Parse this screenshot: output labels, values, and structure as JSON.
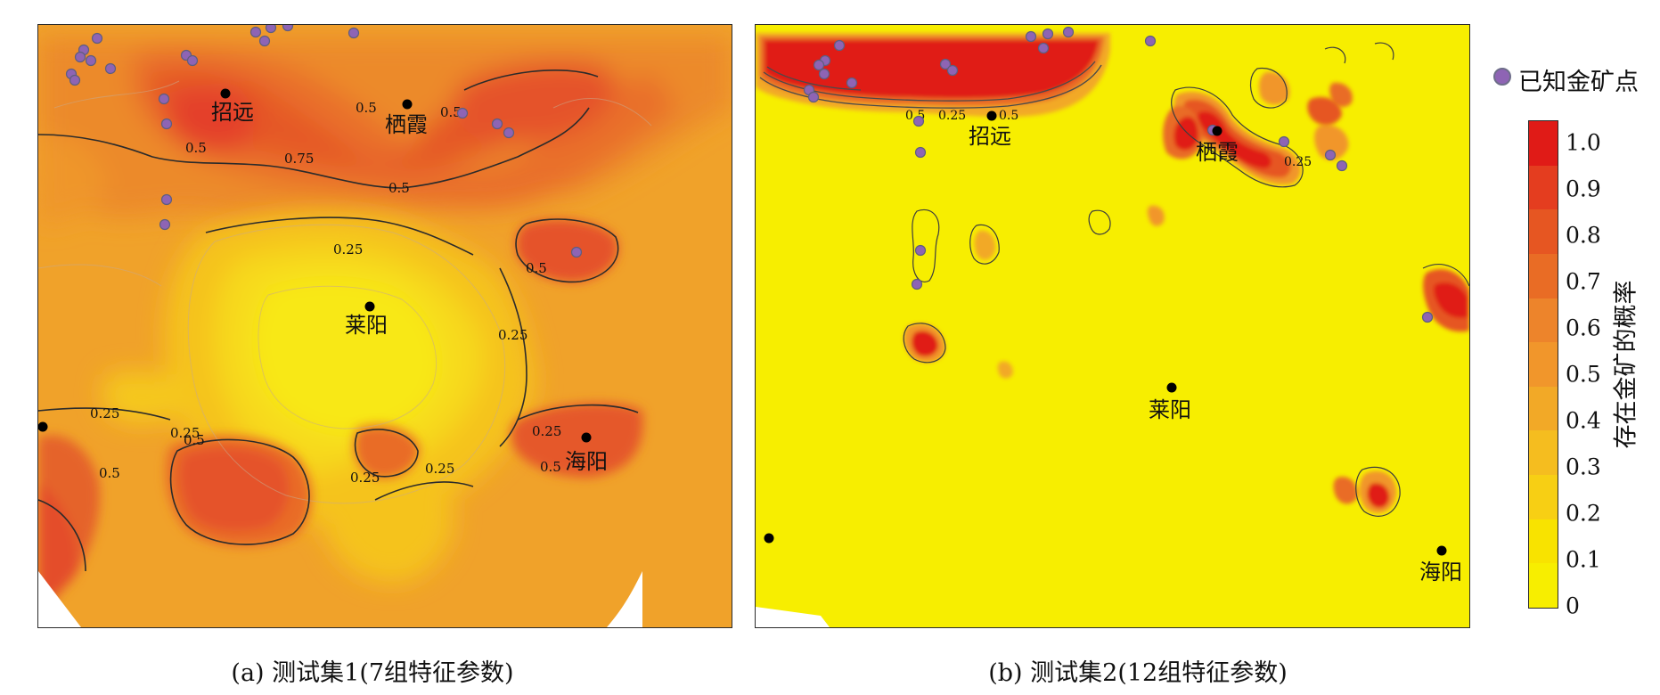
{
  "legend": {
    "marker_label": "已知金矿点",
    "marker_color": "#8e64b4",
    "colorbar_title": "存在金矿的概率",
    "ticks": [
      "0",
      "0.1",
      "0.2",
      "0.3",
      "0.4",
      "0.5",
      "0.6",
      "0.7",
      "0.8",
      "0.9",
      "1.0"
    ],
    "bands": [
      "#f7ee00",
      "#f8e300",
      "#f7cf14",
      "#f5bd1f",
      "#f2a927",
      "#f1962b",
      "#ed842b",
      "#e96c25",
      "#e65622",
      "#e43d1f",
      "#e01b17"
    ]
  },
  "panel_a": {
    "caption": "(a) 测试集1(7组特征参数)",
    "cities": [
      {
        "name": "招远",
        "x": 250,
        "y": 124
      },
      {
        "name": "栖霞",
        "x": 454,
        "y": 138
      },
      {
        "name": "莱阳",
        "x": 409,
        "y": 362
      },
      {
        "name": "海阳",
        "x": 656,
        "y": 516
      }
    ],
    "contour_labels": [
      "0.5",
      "0.5",
      "0.75",
      "0.5",
      "0.5",
      "0.25",
      "0.5",
      "0.25",
      "0.25",
      "0.25",
      "0.5",
      "0.5",
      "0.25",
      "0.25",
      "0.5",
      "0.25"
    ]
  },
  "panel_b": {
    "caption": "(b) 测试集2(12组特征参数)",
    "cities": [
      {
        "name": "招远",
        "x": 930,
        "y": 129
      },
      {
        "name": "栖霞",
        "x": 1145,
        "y": 145
      },
      {
        "name": "莱阳",
        "x": 1099,
        "y": 390
      },
      {
        "name": "海阳",
        "x": 1353,
        "y": 541
      }
    ],
    "contour_labels": [
      "0.5",
      "0.25",
      "0.5",
      "0.25"
    ]
  }
}
